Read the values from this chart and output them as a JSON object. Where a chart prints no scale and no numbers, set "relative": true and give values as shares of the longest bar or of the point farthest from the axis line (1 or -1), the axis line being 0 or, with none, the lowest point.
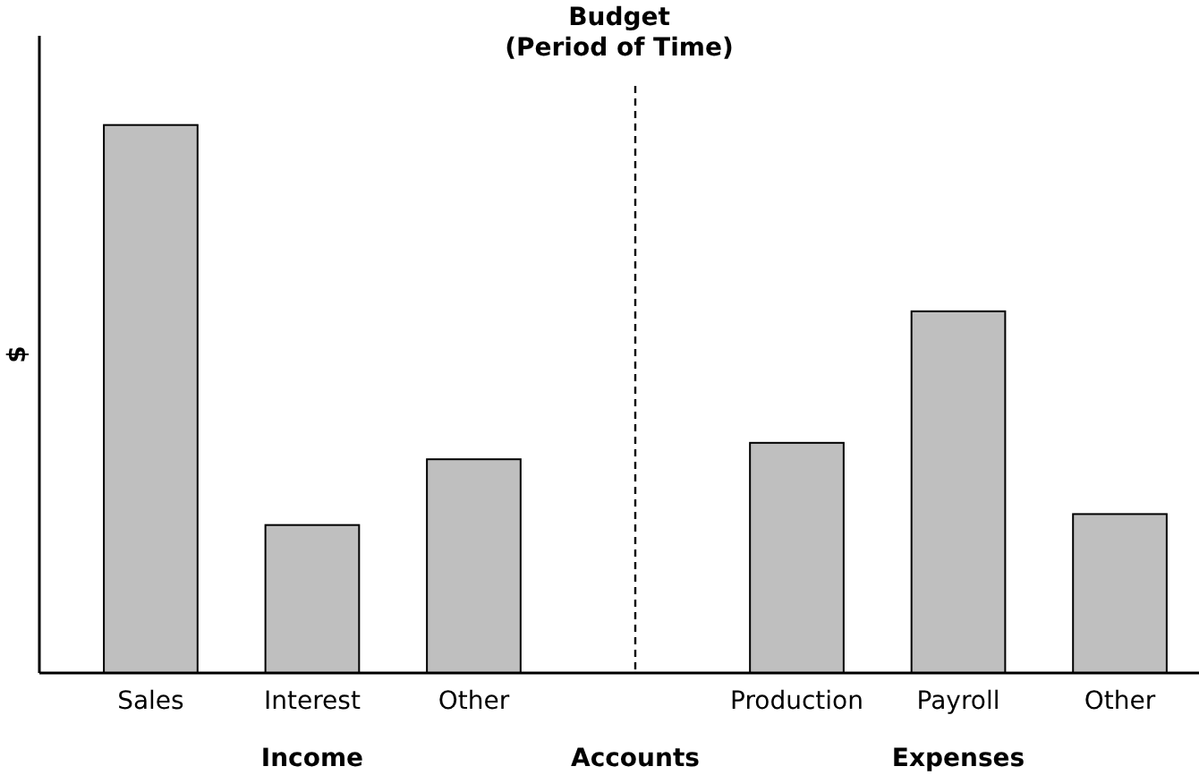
{
  "chart_data": {
    "type": "bar",
    "title": "Budget\n(Period of Time)",
    "xlabel": "Accounts",
    "ylabel": "$",
    "relative": true,
    "categories": [
      "Sales",
      "Interest",
      "Other",
      null,
      "Production",
      "Payroll",
      "Other"
    ],
    "values": [
      1,
      0.27,
      0.39,
      null,
      0.42,
      0.66,
      0.29
    ],
    "color": "#bfbfbf",
    "annotations": [
      "Income",
      "Expenses"
    ]
  }
}
